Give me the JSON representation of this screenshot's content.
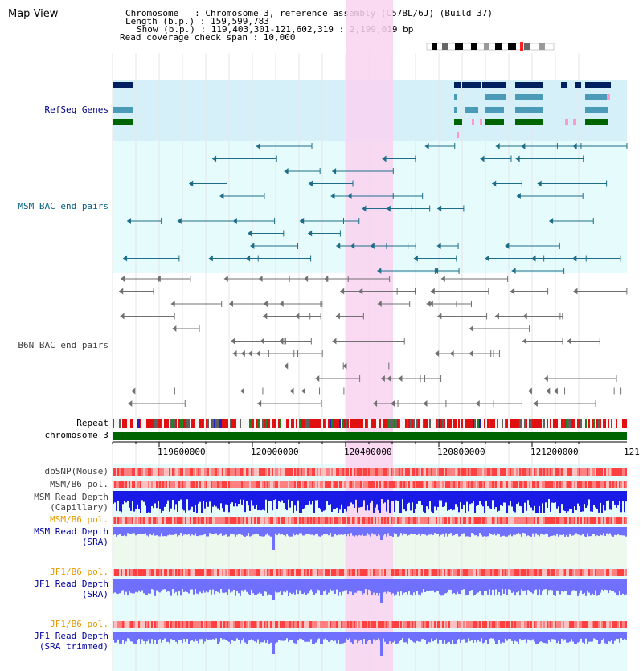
{
  "app": {
    "title": "Map View"
  },
  "info": {
    "chromosome_line": "Chromosome   : Chromosome 3, reference assembly (C57BL/6J) (Build 37)",
    "length_line": "Length (b.p.) : 159,599,783",
    "show_line": "Show (b.p.) : 119,403,301-121,602,319 : 2,199,019 bp",
    "coverage_line": "Read coverage check span : 10,000"
  },
  "tracks": {
    "refseq": "RefSeq Genes",
    "msm_bac": "MSM BAC end pairs",
    "b6n_bac": "B6N BAC end pairs",
    "repeat": "Repeat",
    "chromosome": "chromosome 3",
    "dbsnp": "dbSNP(Mouse)",
    "msm_b6_pol_1": "MSM/B6 pol.",
    "msm_depth_cap_1": "MSM Read Depth",
    "msm_depth_cap_2": "(Capillary)",
    "msm_b6_pol_2": "MSM/B6 pol.",
    "msm_depth_sra_1": "MSM Read Depth",
    "msm_depth_sra_2": "(SRA)",
    "jf1_b6_pol_1": "JF1/B6 pol.",
    "jf1_depth_sra_1": "JF1 Read Depth",
    "jf1_depth_sra_2": "(SRA)",
    "jf1_b6_pol_2": "JF1/B6 pol.",
    "jf1_depth_trim_1": "JF1 Read Depth",
    "jf1_depth_trim_2": "(SRA trimmed)"
  },
  "axis": {
    "ticks": [
      "119600000",
      "120000000",
      "120400000",
      "120800000",
      "121200000",
      "121"
    ]
  },
  "colors": {
    "refseq_band": "#d6f0fa",
    "track_band": "#e6fbfb",
    "highlight": "#f9d2f0",
    "chromosome_bar": "#006400",
    "gene_navy": "#002060",
    "gene_teal": "#4a9ab8",
    "gene_green": "#006400",
    "bac_msm": "#1e6e8a",
    "bac_b6n": "#707070",
    "depth_capillary": "#1a1ae6",
    "depth_sra": "#7070ff",
    "snp_red": "#ff3030"
  }
}
